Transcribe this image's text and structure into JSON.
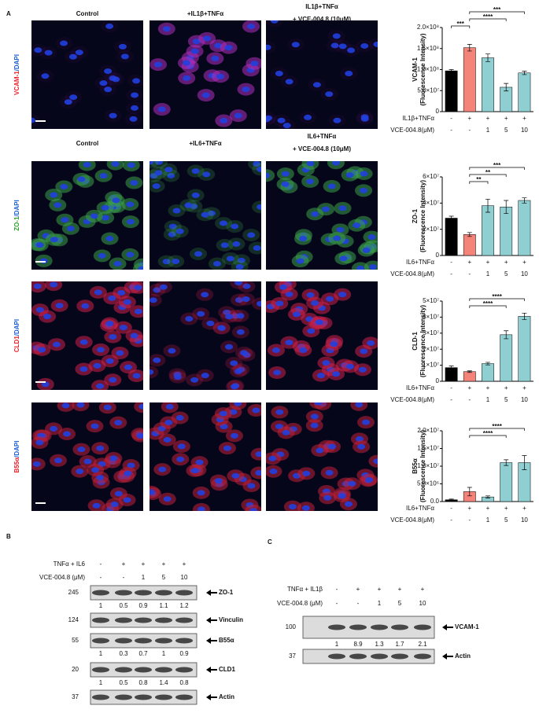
{
  "panel_labels": [
    "A",
    "B",
    "C"
  ],
  "image_sets": [
    {
      "headers": [
        [
          "Control"
        ],
        [
          "+IL1β+TNFα"
        ],
        [
          "IL1β+TNFα",
          "+ VCE-004.8 (10μM)"
        ]
      ],
      "rows": [
        {
          "marker": "VCAM-1",
          "counterstain": "/DAPI",
          "color": "#e8202a",
          "tint": "#b030c0"
        }
      ]
    },
    {
      "headers": [
        [
          "Control"
        ],
        [
          "+IL6+TNFα"
        ],
        [
          "IL6+TNFα",
          "+ VCE-004.8 (10μM)"
        ]
      ],
      "rows": [
        {
          "marker": "ZO-1",
          "counterstain": "/DAPI",
          "color": "#2aa02a",
          "tint": "#3aa04a"
        },
        {
          "marker": "CLD1",
          "counterstain": "/DAPI",
          "color": "#e8202a",
          "tint": "#d0204a"
        },
        {
          "marker": "B55α",
          "counterstain": "/DAPI",
          "color": "#e8202a",
          "tint": "#c0203a"
        }
      ]
    }
  ],
  "chart_data": [
    {
      "type": "bar",
      "y_label": [
        "VCAM-1",
        "(Fluorescence Intensity)"
      ],
      "categories": [
        null,
        null,
        null,
        null,
        null
      ],
      "values": [
        97000000,
        152000000,
        128000000,
        58000000,
        92000000
      ],
      "errors": [
        3000000,
        8000000,
        9000000,
        9000000,
        4000000
      ],
      "colors": [
        "#000000",
        "#f4837a",
        "#8fcfd1",
        "#8fcfd1",
        "#8fcfd1"
      ],
      "ylim": [
        0,
        200000000
      ],
      "yticks": [
        0,
        {
          "value": 50000000,
          "label": "5.0×10⁷"
        },
        {
          "value": 100000000,
          "label": "1.0×10⁸"
        },
        {
          "value": 150000000,
          "label": "1.5×10⁸"
        },
        {
          "value": 200000000,
          "label": "2.0×10⁸"
        }
      ],
      "treatments": [
        {
          "label": "IL1β+TNFα",
          "values": [
            "-",
            "+",
            "+",
            "+",
            "+"
          ]
        },
        {
          "label": "VCE-004.8(μM)",
          "values": [
            "-",
            "-",
            "1",
            "5",
            "10"
          ]
        }
      ],
      "significance": [
        {
          "pair": [
            0,
            1
          ],
          "label": "***"
        },
        {
          "pair": [
            1,
            3
          ],
          "label": "****"
        },
        {
          "pair": [
            1,
            4
          ],
          "label": "***"
        }
      ]
    },
    {
      "type": "bar",
      "y_label": [
        "ZO-1",
        "(Fluorescence Intensity)"
      ],
      "categories": [
        null,
        null,
        null,
        null,
        null
      ],
      "values": [
        28500000,
        16000000,
        38000000,
        37000000,
        42000000
      ],
      "errors": [
        1500000,
        1500000,
        5000000,
        5000000,
        2000000
      ],
      "colors": [
        "#000000",
        "#f4837a",
        "#8fcfd1",
        "#8fcfd1",
        "#8fcfd1"
      ],
      "ylim": [
        0,
        60000000
      ],
      "yticks": [
        0,
        {
          "value": 20000000,
          "label": "2×10⁷"
        },
        {
          "value": 40000000,
          "label": "4×10⁷"
        },
        {
          "value": 60000000,
          "label": "6×10⁷"
        }
      ],
      "treatments": [
        {
          "label": "IL6+TNFα",
          "values": [
            "-",
            "+",
            "+",
            "+",
            "+"
          ]
        },
        {
          "label": "VCE-004.8(μM)",
          "values": [
            "-",
            "-",
            "1",
            "5",
            "10"
          ]
        }
      ],
      "significance": [
        {
          "pair": [
            1,
            2
          ],
          "label": "**"
        },
        {
          "pair": [
            1,
            3
          ],
          "label": "**"
        },
        {
          "pair": [
            1,
            4
          ],
          "label": "***"
        }
      ]
    },
    {
      "type": "bar",
      "y_label": [
        "CLD-1",
        "(Fluorescence Intensity)"
      ],
      "categories": [
        null,
        null,
        null,
        null,
        null
      ],
      "values": [
        8500000,
        6000000,
        11000000,
        29000000,
        40500000
      ],
      "errors": [
        1000000,
        500000,
        800000,
        2500000,
        2000000
      ],
      "colors": [
        "#000000",
        "#f4837a",
        "#8fcfd1",
        "#8fcfd1",
        "#8fcfd1"
      ],
      "ylim": [
        0,
        50000000
      ],
      "yticks": [
        0,
        {
          "value": 10000000,
          "label": "1×10⁷"
        },
        {
          "value": 20000000,
          "label": "2×10⁷"
        },
        {
          "value": 30000000,
          "label": "3×10⁷"
        },
        {
          "value": 40000000,
          "label": "4×10⁷"
        },
        {
          "value": 50000000,
          "label": "5×10⁷"
        }
      ],
      "treatments": [
        {
          "label": "IL6+TNFα",
          "values": [
            "-",
            "+",
            "+",
            "+",
            "+"
          ]
        },
        {
          "label": "VCE-004.8(μM)",
          "values": [
            "-",
            "-",
            "1",
            "5",
            "10"
          ]
        }
      ],
      "significance": [
        {
          "pair": [
            1,
            3
          ],
          "label": "****"
        },
        {
          "pair": [
            1,
            4
          ],
          "label": "****"
        }
      ]
    },
    {
      "type": "bar",
      "y_label": [
        "B55α",
        "(Fluorescence Intensity)"
      ],
      "categories": [
        null,
        null,
        null,
        null,
        null
      ],
      "values": [
        500000,
        2800000,
        1300000,
        11000000,
        11000000
      ],
      "errors": [
        200000,
        1200000,
        300000,
        800000,
        2000000
      ],
      "colors": [
        "#000000",
        "#f4837a",
        "#8fcfd1",
        "#8fcfd1",
        "#8fcfd1"
      ],
      "ylim": [
        0,
        20000000
      ],
      "yticks": [
        {
          "value": 0,
          "label": "0.0"
        },
        {
          "value": 5000000,
          "label": "5.0×10⁶"
        },
        {
          "value": 10000000,
          "label": "1.0×10⁷"
        },
        {
          "value": 15000000,
          "label": "1.5×10⁷"
        },
        {
          "value": 20000000,
          "label": "2.0×10⁷"
        }
      ],
      "treatments": [
        {
          "label": "IL6+TNFα",
          "values": [
            "-",
            "+",
            "+",
            "+",
            "+"
          ]
        },
        {
          "label": "VCE-004.8(μM)",
          "values": [
            "-",
            "-",
            "1",
            "5",
            "10"
          ]
        }
      ],
      "significance": [
        {
          "pair": [
            1,
            3
          ],
          "label": "****"
        },
        {
          "pair": [
            1,
            4
          ],
          "label": "****"
        }
      ]
    }
  ],
  "blots": [
    {
      "treatments": [
        {
          "label": "TNFα + IL6",
          "values": [
            "-",
            "+",
            "+",
            "+",
            "+"
          ]
        },
        {
          "label": "VCE-004.8 (μM)",
          "values": [
            "-",
            "-",
            "1",
            "5",
            "10"
          ]
        }
      ],
      "rows": [
        {
          "mw": "245",
          "label": "ZO-1",
          "quant": [
            1,
            0.5,
            0.9,
            1.1,
            1.2
          ]
        },
        {
          "mw": "124",
          "label": "Vinculin"
        },
        {
          "mw": "55",
          "label": "B55α",
          "quant": [
            1,
            0.3,
            0.7,
            1,
            0.9
          ]
        },
        {
          "mw": "20",
          "label": "CLD1",
          "quant": [
            1,
            0.5,
            0.8,
            1.4,
            0.8
          ]
        },
        {
          "mw": "37",
          "label": "Actin"
        }
      ]
    },
    {
      "treatments": [
        {
          "label": "TNFα + IL1β",
          "values": [
            "-",
            "+",
            "+",
            "+",
            "+"
          ]
        },
        {
          "label": "VCE-004.8 (μM)",
          "values": [
            "-",
            "-",
            "1",
            "5",
            "10"
          ]
        }
      ],
      "rows": [
        {
          "mw": "100",
          "label": "VCAM-1",
          "quant": [
            1,
            8.9,
            1.3,
            1.7,
            2.1
          ]
        },
        {
          "mw": "37",
          "label": "Actin"
        }
      ]
    }
  ]
}
